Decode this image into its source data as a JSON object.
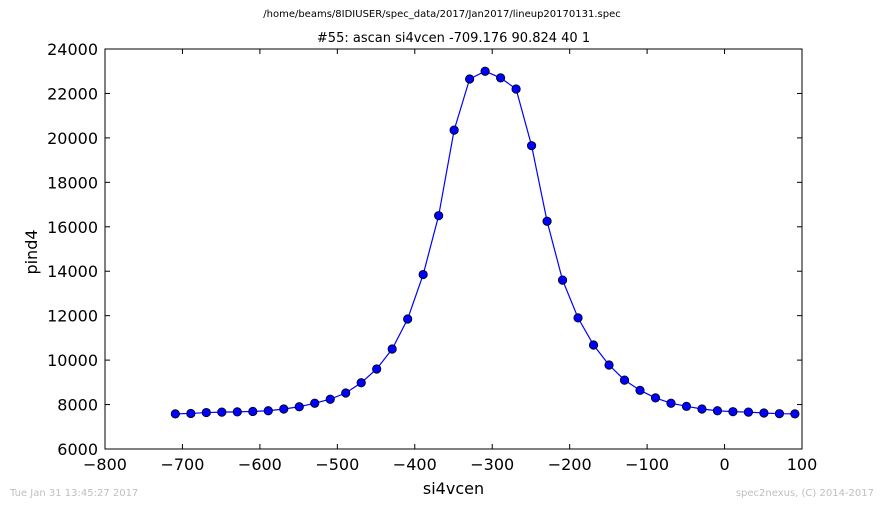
{
  "header": {
    "file_path": "/home/beams/8IDIUSER/spec_data/2017/Jan2017/lineup20170131.spec"
  },
  "footer": {
    "timestamp": "Tue Jan 31 13:45:27 2017",
    "credit": "spec2nexus, (C) 2014-2017"
  },
  "chart_data": {
    "type": "line",
    "title": "#55: ascan  si4vcen -709.176 90.824  40 1",
    "xlabel": "si4vcen",
    "ylabel": "pind4",
    "xlim": [
      -800,
      100
    ],
    "ylim": [
      6000,
      24000
    ],
    "xticks": [
      -800,
      -700,
      -600,
      -500,
      -400,
      -300,
      -200,
      -100,
      0,
      100
    ],
    "xtick_labels": [
      "−800",
      "−700",
      "−600",
      "−500",
      "−400",
      "−300",
      "−200",
      "−100",
      "0",
      "100"
    ],
    "yticks": [
      6000,
      8000,
      10000,
      12000,
      14000,
      16000,
      18000,
      20000,
      22000,
      24000
    ],
    "ytick_labels": [
      "6000",
      "8000",
      "10000",
      "12000",
      "14000",
      "16000",
      "18000",
      "20000",
      "22000",
      "24000"
    ],
    "grid": false,
    "series": [
      {
        "color": "#0000ff",
        "marker": "circle",
        "x": [
          -709.176,
          -689.176,
          -669.176,
          -649.176,
          -629.176,
          -609.176,
          -589.176,
          -569.176,
          -549.176,
          -529.176,
          -509.176,
          -489.176,
          -469.176,
          -449.176,
          -429.176,
          -409.176,
          -389.176,
          -369.176,
          -349.176,
          -329.176,
          -309.176,
          -289.176,
          -269.176,
          -249.176,
          -229.176,
          -209.176,
          -189.176,
          -169.176,
          -149.176,
          -129.176,
          -109.176,
          -89.176,
          -69.176,
          -49.176,
          -29.176,
          -9.176,
          10.824,
          30.824,
          50.824,
          70.824,
          90.824
        ],
        "y": [
          7580,
          7600,
          7640,
          7660,
          7670,
          7690,
          7720,
          7800,
          7900,
          8060,
          8240,
          8520,
          8980,
          9600,
          10500,
          11850,
          13850,
          16500,
          20350,
          22650,
          23000,
          22700,
          22200,
          19650,
          16250,
          13600,
          11900,
          10680,
          9780,
          9100,
          8640,
          8300,
          8060,
          7920,
          7800,
          7720,
          7680,
          7660,
          7620,
          7590,
          7580
        ]
      }
    ]
  }
}
